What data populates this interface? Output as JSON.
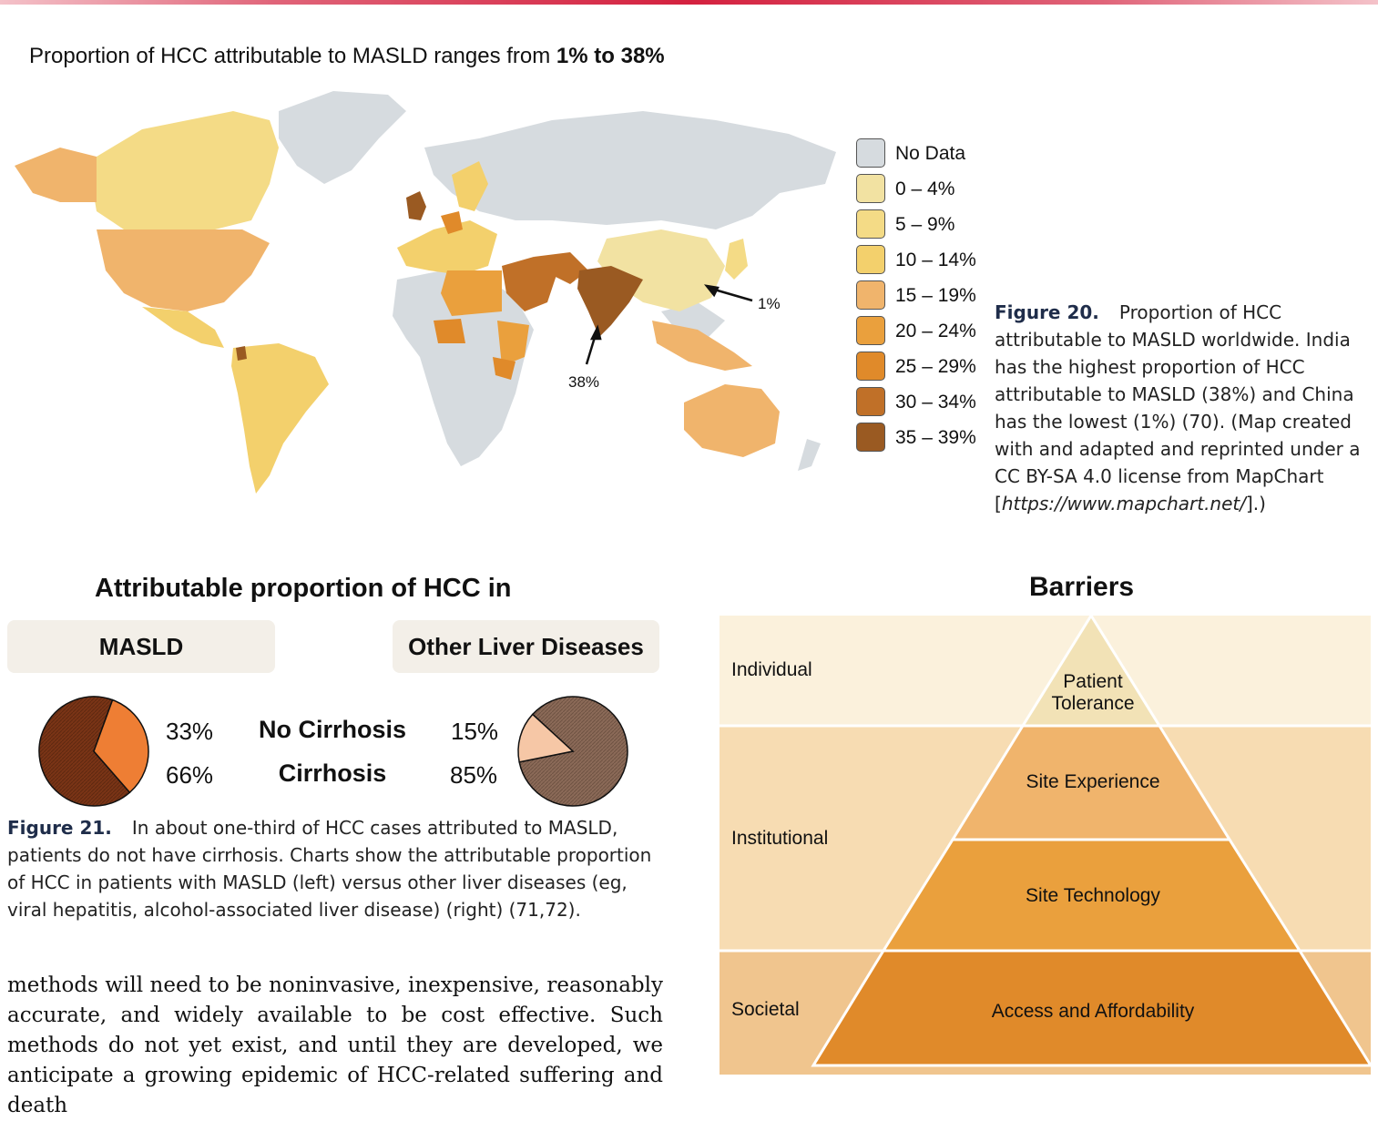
{
  "map": {
    "title_prefix": "Proportion of HCC attributable to MASLD ranges from ",
    "title_bold": "1% to 38%",
    "annotation_china": "1%",
    "annotation_india": "38%",
    "legend": [
      {
        "label": "No Data",
        "color": "#d6dbdf"
      },
      {
        "label": "0 – 4%",
        "color": "#f2e2a2"
      },
      {
        "label": "5 – 9%",
        "color": "#f4db86"
      },
      {
        "label": "10 – 14%",
        "color": "#f3d06c"
      },
      {
        "label": "15 – 19%",
        "color": "#f0b46c"
      },
      {
        "label": "20 – 24%",
        "color": "#eaa03d"
      },
      {
        "label": "25 – 29%",
        "color": "#e08a2a"
      },
      {
        "label": "30 – 34%",
        "color": "#c07028"
      },
      {
        "label": "35 – 39%",
        "color": "#9a5a22"
      }
    ]
  },
  "fig20": {
    "label": "Figure 20.",
    "text": "Proportion of HCC attributable to MASLD worldwide. India has the highest proportion of HCC attributable to MASLD (38%) and China has the lowest (1%) (70). (Map created with and adapted and reprinted under a CC BY-SA 4.0 license from MapChart [",
    "link": "https://www.mapchart.net/",
    "text_end": "].)"
  },
  "pies": {
    "title": "Attributable proportion of HCC in",
    "masld_label": "MASLD",
    "other_label": "Other Liver Diseases",
    "row_no_cirrhosis": "No Cirrhosis",
    "row_cirrhosis": "Cirrhosis",
    "masld_no_cirrhosis_pct": "33%",
    "masld_cirrhosis_pct": "66%",
    "other_no_cirrhosis_pct": "15%",
    "other_cirrhosis_pct": "85%",
    "masld_fraction_no_cirrhosis": 0.33,
    "other_fraction_no_cirrhosis": 0.15,
    "colors": {
      "masld_light": "#ee7e34",
      "masld_dark": "#7a3416",
      "other_light": "#f6c7a6",
      "other_dark": "#8b6a58"
    }
  },
  "fig21": {
    "label": "Figure 21.",
    "text": "In about one-third of HCC cases attributed to MASLD, patients do not have cirrhosis. Charts show the attributable proportion of HCC in patients with MASLD (left) versus other liver diseases (eg, viral hepatitis, alcohol-associated liver disease) (right) (71,72)."
  },
  "body_text": "methods will need to be noninvasive, inexpensive, reasonably accurate, and widely available to be cost effective. Such methods do not yet exist, and until they are developed, we anticipate a growing epidemic of HCC-related suffering and death",
  "barriers": {
    "title": "Barriers",
    "levels": [
      "Individual",
      "Institutional",
      "Societal"
    ],
    "tiers": [
      "Patient Tolerance",
      "Site Experience",
      "Site Technology",
      "Access and Affordability"
    ]
  }
}
